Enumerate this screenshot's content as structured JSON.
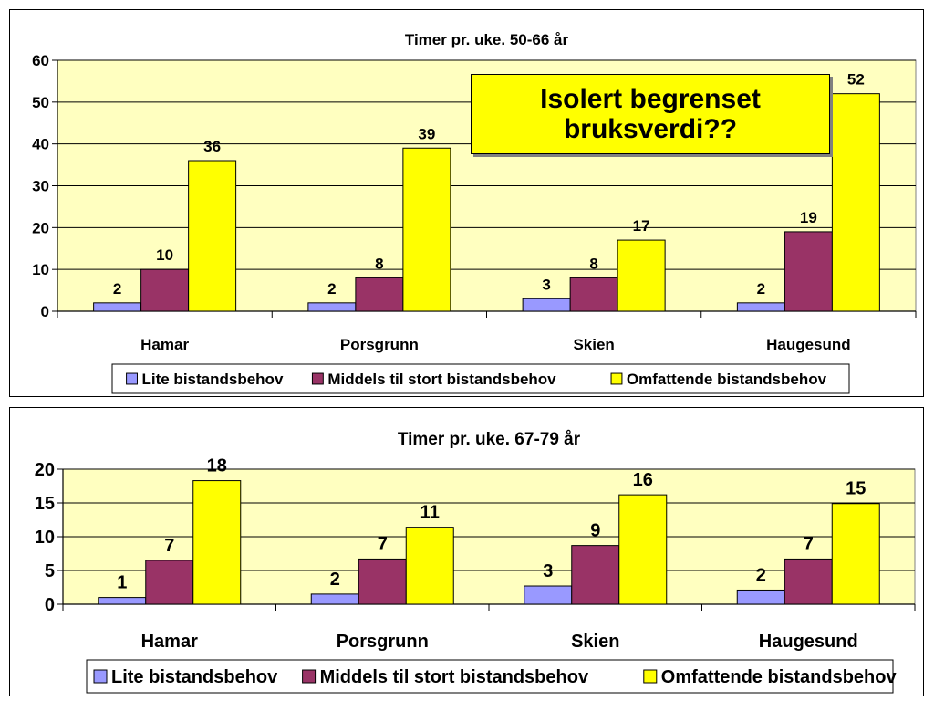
{
  "callout": {
    "text": "Isolert begrenset\nbruksverdi??",
    "background": "#ffff00"
  },
  "colors": {
    "plot_background": "#ffffc0",
    "grid": "#000000",
    "series": [
      "#9999ff",
      "#993366",
      "#ffff00"
    ]
  },
  "chart_data": [
    {
      "type": "bar",
      "title": "Timer pr. uke. 50-66 år",
      "categories": [
        "Hamar",
        "Porsgrunn",
        "Skien",
        "Haugesund"
      ],
      "series": [
        {
          "name": "Lite bistandsbehov",
          "values": [
            2,
            2,
            3,
            2
          ],
          "labels": [
            "2",
            "2",
            "3",
            "2"
          ]
        },
        {
          "name": "Middels til stort bistandsbehov",
          "values": [
            10,
            8,
            8,
            19
          ],
          "labels": [
            "10",
            "8",
            "8",
            "19"
          ]
        },
        {
          "name": "Omfattende bistandsbehov",
          "values": [
            36,
            39,
            17,
            52
          ],
          "labels": [
            "36",
            "39",
            "17",
            "52"
          ]
        }
      ],
      "ylim": [
        0,
        60
      ],
      "yticks": [
        "0",
        "10",
        "20",
        "30",
        "40",
        "50",
        "60"
      ],
      "grid": true,
      "legend_position": "bottom"
    },
    {
      "type": "bar",
      "title": "Timer pr. uke. 67-79 år",
      "categories": [
        "Hamar",
        "Porsgrunn",
        "Skien",
        "Haugesund"
      ],
      "series": [
        {
          "name": "Lite bistandsbehov",
          "values": [
            1,
            1.5,
            2.7,
            2.1
          ],
          "labels": [
            "1",
            "2",
            "3",
            "2"
          ]
        },
        {
          "name": "Middels til stort bistandsbehov",
          "values": [
            6.5,
            6.7,
            8.7,
            6.7
          ],
          "labels": [
            "7",
            "7",
            "9",
            "7"
          ]
        },
        {
          "name": "Omfattende bistandsbehov",
          "values": [
            18.3,
            11.4,
            16.2,
            14.9
          ],
          "labels": [
            "18",
            "11",
            "16",
            "15"
          ]
        }
      ],
      "ylim": [
        0,
        20
      ],
      "yticks": [
        "0",
        "5",
        "10",
        "15",
        "20"
      ],
      "grid": true,
      "legend_position": "bottom"
    }
  ]
}
